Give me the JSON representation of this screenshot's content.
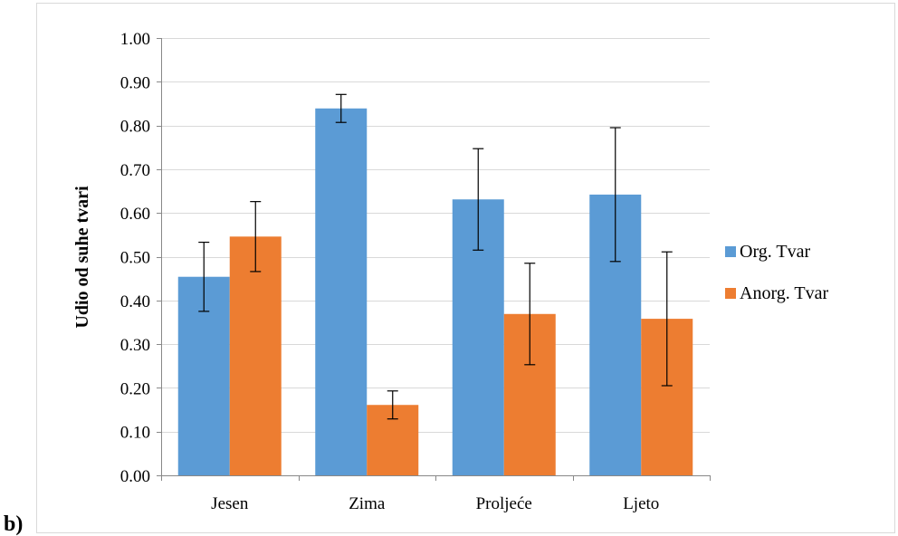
{
  "panel_label": "b)",
  "chart_data": {
    "type": "bar",
    "title": "",
    "xlabel": "",
    "ylabel": "Udio od suhe tvari",
    "ylim": [
      0,
      1.0
    ],
    "ytick_step": 0.1,
    "yticks": [
      "0.00",
      "0.10",
      "0.20",
      "0.30",
      "0.40",
      "0.50",
      "0.60",
      "0.70",
      "0.80",
      "0.90",
      "1.00"
    ],
    "grid": true,
    "legend_position": "right",
    "categories": [
      "Jesen",
      "Zima",
      "Proljeće",
      "Ljeto"
    ],
    "series": [
      {
        "name": "Org. Tvar",
        "color": "#5B9BD5",
        "values": [
          0.454,
          0.839,
          0.631,
          0.642
        ],
        "error": [
          0.079,
          0.032,
          0.116,
          0.153
        ]
      },
      {
        "name": "Anorg. Tvar",
        "color": "#ED7D31",
        "values": [
          0.546,
          0.161,
          0.369,
          0.358
        ],
        "error": [
          0.08,
          0.032,
          0.116,
          0.153
        ]
      }
    ]
  }
}
